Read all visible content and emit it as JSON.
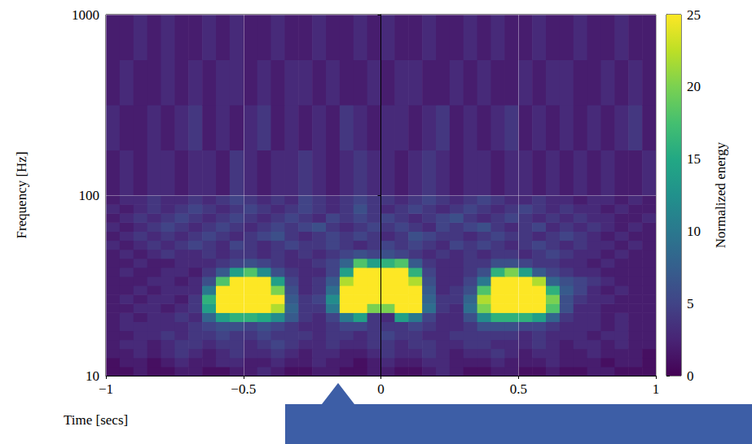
{
  "chart_data": {
    "type": "heatmap",
    "x_label": "Time [secs]",
    "y_label": "Frequency [Hz]",
    "log": "y",
    "grid": true,
    "xlim": [
      -1,
      1
    ],
    "xticks": [
      {
        "value": -1,
        "label": "−1"
      },
      {
        "value": -0.5,
        "label": "−0.5"
      },
      0,
      0.5,
      1
    ],
    "ylim": [
      10,
      1000
    ],
    "yticks": [
      10,
      100,
      1000
    ],
    "time_edges": [
      -1,
      -0.95,
      -0.9,
      -0.85,
      -0.8,
      -0.75,
      -0.7,
      -0.65,
      -0.6,
      -0.55,
      -0.5,
      -0.45,
      -0.4,
      -0.35,
      -0.3,
      -0.25,
      -0.2,
      -0.15,
      -0.1,
      -0.05,
      0,
      0.05,
      0.1,
      0.15,
      0.2,
      0.25,
      0.3,
      0.35,
      0.4,
      0.45,
      0.5,
      0.55,
      0.6,
      0.65,
      0.7,
      0.75,
      0.8,
      0.85,
      0.9,
      0.95,
      1
    ],
    "frequency_edges": [
      10,
      11.22,
      12.59,
      14.13,
      15.85,
      17.78,
      19.95,
      22.39,
      25.12,
      28.18,
      31.62,
      35.48,
      39.81,
      44.67,
      50.12,
      56.23,
      63.1,
      70.79,
      79.43,
      89.13,
      100,
      177.8,
      316.2,
      562.3,
      1000
    ],
    "cells": [
      [
        1,
        1,
        2,
        1,
        1,
        2,
        2,
        1,
        1,
        2,
        2,
        3,
        2,
        1,
        1,
        2,
        2,
        1,
        1,
        2,
        2,
        1,
        1,
        2,
        3,
        2,
        1,
        1,
        2,
        2,
        1,
        1,
        2,
        1,
        1,
        2,
        2,
        1,
        1,
        1
      ],
      [
        1,
        2,
        2,
        1,
        2,
        3,
        2,
        2,
        3,
        3,
        2,
        2,
        3,
        2,
        2,
        3,
        2,
        2,
        1,
        2,
        3,
        2,
        2,
        3,
        3,
        2,
        2,
        2,
        3,
        2,
        2,
        2,
        3,
        2,
        2,
        2,
        1,
        2,
        2,
        1
      ],
      [
        2,
        2,
        3,
        2,
        3,
        4,
        3,
        2,
        3,
        4,
        3,
        3,
        4,
        3,
        2,
        3,
        3,
        2,
        2,
        3,
        4,
        3,
        3,
        4,
        3,
        2,
        3,
        3,
        4,
        3,
        2,
        3,
        3,
        2,
        2,
        3,
        2,
        2,
        2,
        1
      ],
      [
        2,
        3,
        3,
        2,
        3,
        4,
        4,
        3,
        4,
        4,
        3,
        4,
        5,
        4,
        3,
        3,
        4,
        3,
        3,
        4,
        4,
        3,
        4,
        4,
        3,
        3,
        4,
        4,
        3,
        3,
        3,
        4,
        3,
        2,
        3,
        3,
        2,
        3,
        2,
        2
      ],
      [
        2,
        2,
        3,
        3,
        4,
        3,
        4,
        4,
        5,
        4,
        4,
        5,
        4,
        4,
        4,
        3,
        4,
        4,
        3,
        4,
        5,
        4,
        4,
        3,
        3,
        4,
        4,
        4,
        4,
        4,
        3,
        4,
        3,
        3,
        3,
        2,
        3,
        3,
        2,
        2
      ],
      [
        2,
        3,
        3,
        3,
        3,
        3,
        4,
        5,
        6,
        6,
        5,
        6,
        5,
        4,
        3,
        3,
        4,
        5,
        5,
        4,
        4,
        4,
        5,
        4,
        3,
        3,
        4,
        6,
        6,
        6,
        5,
        5,
        4,
        3,
        3,
        3,
        2,
        3,
        2,
        2
      ],
      [
        2,
        3,
        2,
        3,
        3,
        4,
        3,
        8,
        14,
        16,
        16,
        15,
        12,
        7,
        4,
        3,
        5,
        10,
        14,
        4,
        3,
        14,
        10,
        5,
        3,
        3,
        6,
        12,
        16,
        16,
        16,
        14,
        8,
        4,
        3,
        3,
        2,
        3,
        2,
        2
      ],
      [
        2,
        2,
        3,
        3,
        2,
        3,
        4,
        14,
        25,
        25,
        25,
        25,
        22,
        8,
        4,
        4,
        10,
        25,
        25,
        20,
        20,
        25,
        25,
        9,
        4,
        3,
        9,
        20,
        25,
        25,
        25,
        25,
        18,
        6,
        3,
        3,
        2,
        2,
        2,
        2
      ],
      [
        2,
        3,
        2,
        3,
        3,
        2,
        4,
        16,
        25,
        25,
        25,
        25,
        25,
        7,
        4,
        5,
        12,
        25,
        25,
        25,
        25,
        25,
        25,
        8,
        4,
        4,
        8,
        22,
        25,
        25,
        25,
        25,
        20,
        6,
        4,
        3,
        3,
        2,
        2,
        2
      ],
      [
        2,
        2,
        3,
        2,
        3,
        3,
        3,
        10,
        25,
        25,
        25,
        25,
        20,
        6,
        3,
        4,
        9,
        25,
        25,
        25,
        25,
        25,
        25,
        7,
        3,
        4,
        6,
        18,
        25,
        25,
        25,
        25,
        16,
        7,
        5,
        3,
        2,
        3,
        2,
        2
      ],
      [
        2,
        2,
        2,
        3,
        3,
        2,
        3,
        6,
        18,
        25,
        25,
        25,
        14,
        5,
        3,
        4,
        7,
        22,
        25,
        25,
        25,
        25,
        22,
        6,
        3,
        3,
        5,
        10,
        25,
        25,
        25,
        22,
        8,
        6,
        5,
        4,
        3,
        2,
        2,
        2
      ],
      [
        2,
        3,
        2,
        2,
        3,
        3,
        2,
        4,
        7,
        14,
        18,
        12,
        6,
        4,
        3,
        3,
        5,
        14,
        25,
        25,
        25,
        25,
        16,
        5,
        3,
        3,
        4,
        6,
        16,
        20,
        14,
        7,
        5,
        4,
        3,
        3,
        2,
        2,
        2,
        2
      ],
      [
        2,
        2,
        3,
        2,
        2,
        3,
        3,
        3,
        4,
        5,
        6,
        5,
        4,
        3,
        3,
        4,
        5,
        8,
        18,
        14,
        16,
        18,
        7,
        4,
        3,
        3,
        4,
        4,
        6,
        6,
        5,
        4,
        4,
        3,
        3,
        2,
        3,
        2,
        2,
        2
      ],
      [
        2,
        3,
        2,
        3,
        4,
        3,
        3,
        4,
        3,
        4,
        4,
        3,
        4,
        3,
        4,
        3,
        4,
        5,
        6,
        5,
        6,
        5,
        4,
        3,
        4,
        3,
        4,
        3,
        4,
        4,
        3,
        4,
        5,
        4,
        3,
        3,
        2,
        3,
        2,
        2
      ],
      [
        3,
        2,
        3,
        4,
        3,
        4,
        5,
        4,
        3,
        5,
        4,
        3,
        4,
        5,
        4,
        4,
        5,
        4,
        3,
        4,
        5,
        4,
        5,
        4,
        3,
        5,
        4,
        5,
        4,
        3,
        4,
        5,
        4,
        3,
        4,
        3,
        3,
        2,
        3,
        2
      ],
      [
        2,
        3,
        4,
        3,
        4,
        3,
        4,
        5,
        4,
        3,
        4,
        5,
        6,
        4,
        3,
        4,
        5,
        4,
        5,
        4,
        3,
        4,
        6,
        5,
        4,
        4,
        3,
        4,
        5,
        4,
        4,
        3,
        4,
        5,
        4,
        3,
        2,
        3,
        2,
        2
      ],
      [
        3,
        2,
        3,
        4,
        5,
        4,
        3,
        4,
        5,
        4,
        3,
        4,
        5,
        4,
        5,
        6,
        4,
        3,
        4,
        5,
        4,
        5,
        4,
        3,
        5,
        4,
        5,
        6,
        4,
        3,
        4,
        5,
        3,
        4,
        3,
        4,
        3,
        2,
        3,
        2
      ],
      [
        2,
        3,
        4,
        3,
        4,
        5,
        4,
        3,
        4,
        5,
        4,
        3,
        4,
        5,
        4,
        3,
        5,
        4,
        5,
        4,
        5,
        4,
        3,
        4,
        5,
        6,
        4,
        3,
        4,
        5,
        4,
        3,
        4,
        3,
        4,
        3,
        3,
        2,
        2,
        3
      ],
      [
        3,
        2,
        3,
        4,
        3,
        4,
        5,
        4,
        3,
        4,
        5,
        4,
        3,
        4,
        5,
        4,
        3,
        4,
        6,
        4,
        3,
        4,
        5,
        4,
        3,
        4,
        5,
        4,
        3,
        4,
        5,
        4,
        3,
        4,
        3,
        3,
        2,
        3,
        2,
        2
      ],
      [
        2,
        3,
        3,
        4,
        3,
        3,
        4,
        3,
        4,
        5,
        4,
        3,
        4,
        3,
        5,
        4,
        3,
        4,
        5,
        4,
        4,
        3,
        4,
        5,
        4,
        3,
        4,
        5,
        4,
        3,
        3,
        4,
        3,
        3,
        2,
        3,
        3,
        2,
        3,
        2
      ],
      [
        2,
        3,
        2,
        3,
        3,
        2,
        3,
        3,
        2,
        4,
        3,
        2,
        3,
        3,
        4,
        3,
        2,
        3,
        4,
        3,
        3,
        2,
        3,
        4,
        3,
        2,
        3,
        3,
        2,
        3,
        3,
        2,
        3,
        2,
        3,
        2,
        3,
        2,
        2,
        3
      ],
      [
        3,
        2,
        2,
        3,
        2,
        3,
        4,
        2,
        3,
        2,
        3,
        4,
        2,
        3,
        2,
        3,
        2,
        4,
        3,
        2,
        3,
        3,
        2,
        3,
        4,
        2,
        3,
        2,
        3,
        4,
        2,
        3,
        2,
        3,
        2,
        3,
        2,
        3,
        4,
        2
      ],
      [
        2,
        3,
        2,
        2,
        3,
        2,
        3,
        2,
        3,
        3,
        2,
        3,
        2,
        3,
        3,
        2,
        3,
        2,
        2,
        3,
        2,
        3,
        3,
        2,
        2,
        3,
        2,
        3,
        2,
        2,
        3,
        2,
        3,
        3,
        2,
        2,
        3,
        2,
        3,
        2
      ],
      [
        2,
        2,
        3,
        2,
        3,
        2,
        2,
        3,
        2,
        3,
        2,
        2,
        3,
        2,
        2,
        3,
        2,
        2,
        3,
        2,
        3,
        2,
        2,
        3,
        2,
        2,
        3,
        2,
        3,
        2,
        2,
        3,
        2,
        2,
        3,
        2,
        2,
        3,
        2,
        2
      ]
    ],
    "colorbar": {
      "label": "Normalized energy",
      "range": [
        0,
        25
      ],
      "ticks": [
        0,
        5,
        10,
        15,
        20,
        25
      ]
    }
  }
}
